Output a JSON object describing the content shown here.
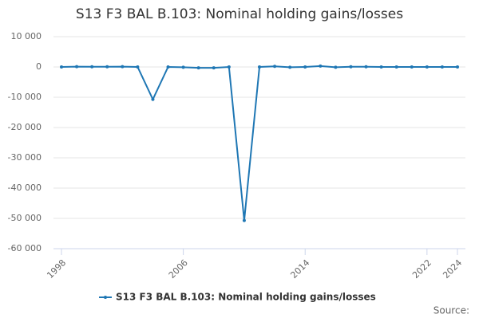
{
  "chart_data": {
    "type": "line",
    "title": "S13 F3 BAL B.103: Nominal holding gains/losses",
    "x": [
      1998,
      1999,
      2000,
      2001,
      2002,
      2003,
      2004,
      2005,
      2006,
      2007,
      2008,
      2009,
      2010,
      2011,
      2012,
      2013,
      2014,
      2015,
      2016,
      2017,
      2018,
      2019,
      2020,
      2021,
      2022,
      2023,
      2024
    ],
    "series": [
      {
        "name": "S13 F3 BAL B.103: Nominal holding gains/losses",
        "color": "#1f77b4",
        "values": [
          0,
          100,
          50,
          50,
          100,
          0,
          -10700,
          0,
          -100,
          -300,
          -300,
          0,
          -50700,
          0,
          200,
          -100,
          0,
          300,
          -100,
          50,
          50,
          0,
          0,
          0,
          0,
          0,
          0
        ]
      }
    ],
    "xlim": [
      1998,
      2024
    ],
    "xticks": [
      1998,
      2006,
      2014,
      2022,
      2024
    ],
    "ylim": [
      -60000,
      10000
    ],
    "yticks": [
      {
        "value": 10000,
        "label": "10 000"
      },
      0,
      {
        "value": -10000,
        "label": "-10 000"
      },
      {
        "value": -20000,
        "label": "-20 000"
      },
      {
        "value": -30000,
        "label": "-30 000"
      },
      {
        "value": -40000,
        "label": "-40 000"
      },
      {
        "value": -50000,
        "label": "-50 000"
      },
      {
        "value": -60000,
        "label": "-60 000"
      }
    ],
    "grid": true,
    "legend": "bottom",
    "source": "Source:"
  }
}
